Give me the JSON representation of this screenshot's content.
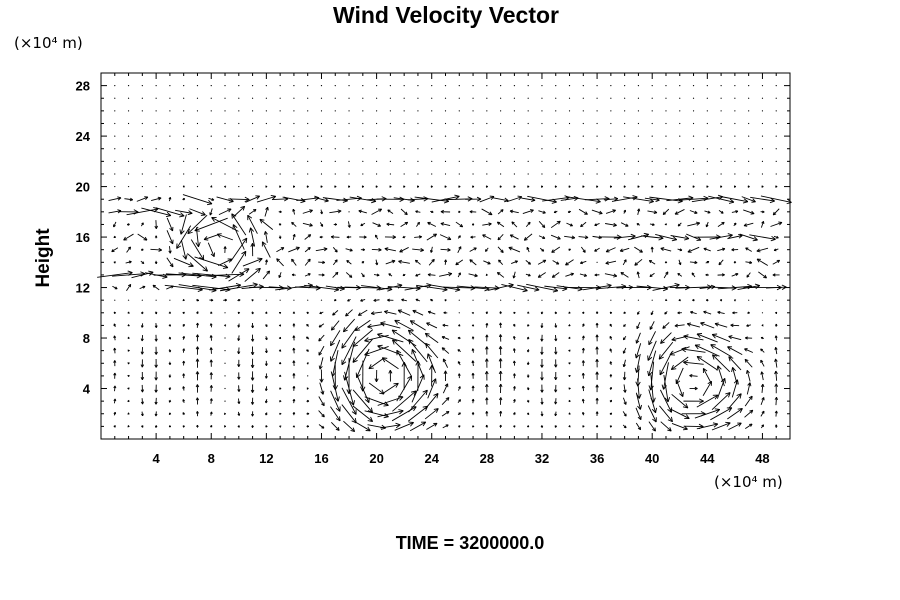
{
  "chart_data": {
    "type": "vector-field",
    "title": "Wind Velocity Vector",
    "ylabel": "Height",
    "xlabel": "",
    "x_unit": "(×10⁴ m)",
    "y_unit": "(×10⁴ m)",
    "xlim": [
      0,
      50
    ],
    "ylim": [
      0,
      29
    ],
    "x_ticks": [
      "4",
      "8",
      "12",
      "16",
      "20",
      "24",
      "28",
      "32",
      "36",
      "40",
      "44",
      "48"
    ],
    "y_ticks": [
      "4",
      "8",
      "12",
      "16",
      "20",
      "24",
      "28"
    ],
    "grid": false,
    "footer": "TIME = 3200000.0",
    "vector_color": "#000000",
    "features": [
      {
        "kind": "jet",
        "y": 19.1,
        "x_range": [
          8,
          50
        ],
        "speed": 1.0
      },
      {
        "kind": "jet",
        "y": 18.1,
        "x_range": [
          0,
          10
        ],
        "speed": 0.8
      },
      {
        "kind": "jet",
        "y": 16.2,
        "x_range": [
          36,
          50
        ],
        "speed": 0.7
      },
      {
        "kind": "jet",
        "y": 13.0,
        "x_range": [
          0,
          8
        ],
        "speed": 1.2
      },
      {
        "kind": "jet",
        "y": 12.1,
        "x_range": [
          7,
          50
        ],
        "speed": 1.1
      },
      {
        "kind": "vortex",
        "x": 20.8,
        "y": 5.0,
        "radius": 3.6,
        "strength": 1.0
      },
      {
        "kind": "vortex",
        "x": 43.5,
        "y": 4.5,
        "radius": 3.4,
        "strength": 0.9
      },
      {
        "kind": "vortex",
        "x": 8.5,
        "y": 15.5,
        "radius": 2.4,
        "strength": 0.9
      }
    ]
  }
}
